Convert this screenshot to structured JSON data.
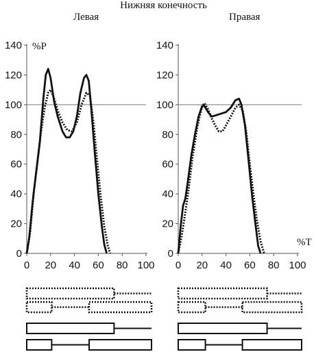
{
  "figure": {
    "title": "Нижняя конечность"
  },
  "chart_data": [
    {
      "type": "line",
      "title": "Левая",
      "ylabel": "%P",
      "xlabel": "",
      "xlim": [
        0,
        100
      ],
      "ylim": [
        0,
        140
      ],
      "xticks": [
        0,
        20,
        40,
        60,
        80,
        100
      ],
      "yticks": [
        0,
        20,
        40,
        60,
        80,
        100,
        120,
        140
      ],
      "reference_line": 100,
      "grid": false,
      "series": [
        {
          "style": "solid",
          "points": [
            [
              0,
              0
            ],
            [
              2,
              10
            ],
            [
              5,
              35
            ],
            [
              8,
              55
            ],
            [
              11,
              75
            ],
            [
              14,
              105
            ],
            [
              16,
              120
            ],
            [
              18,
              124
            ],
            [
              20,
              118
            ],
            [
              23,
              102
            ],
            [
              26,
              92
            ],
            [
              30,
              82
            ],
            [
              33,
              78
            ],
            [
              36,
              78
            ],
            [
              39,
              82
            ],
            [
              42,
              92
            ],
            [
              45,
              108
            ],
            [
              48,
              118
            ],
            [
              50,
              120
            ],
            [
              52,
              116
            ],
            [
              54,
              98
            ],
            [
              57,
              68
            ],
            [
              60,
              40
            ],
            [
              63,
              18
            ],
            [
              65,
              6
            ],
            [
              67,
              0
            ]
          ]
        },
        {
          "style": "dotted",
          "points": [
            [
              0,
              0
            ],
            [
              3,
              15
            ],
            [
              6,
              42
            ],
            [
              9,
              62
            ],
            [
              12,
              82
            ],
            [
              15,
              98
            ],
            [
              18,
              108
            ],
            [
              20,
              110
            ],
            [
              23,
              104
            ],
            [
              26,
              96
            ],
            [
              30,
              88
            ],
            [
              34,
              83
            ],
            [
              38,
              82
            ],
            [
              42,
              88
            ],
            [
              46,
              100
            ],
            [
              50,
              108
            ],
            [
              53,
              106
            ],
            [
              56,
              88
            ],
            [
              59,
              62
            ],
            [
              62,
              38
            ],
            [
              65,
              18
            ],
            [
              68,
              5
            ],
            [
              70,
              0
            ]
          ]
        }
      ]
    },
    {
      "type": "line",
      "title": "Правая",
      "ylabel": "",
      "xlabel": "%T",
      "xlim": [
        0,
        100
      ],
      "ylim": [
        0,
        140
      ],
      "xticks": [
        0,
        20,
        40,
        60,
        80,
        100
      ],
      "yticks": [
        0,
        20,
        40,
        60,
        80,
        100,
        120,
        140
      ],
      "reference_line": 100,
      "grid": false,
      "series": [
        {
          "style": "solid",
          "points": [
            [
              0,
              0
            ],
            [
              2,
              18
            ],
            [
              4,
              32
            ],
            [
              6,
              37
            ],
            [
              8,
              48
            ],
            [
              11,
              66
            ],
            [
              14,
              80
            ],
            [
              17,
              92
            ],
            [
              20,
              99
            ],
            [
              22,
              99
            ],
            [
              25,
              95
            ],
            [
              28,
              92
            ],
            [
              32,
              93
            ],
            [
              36,
              94
            ],
            [
              40,
              95
            ],
            [
              44,
              98
            ],
            [
              48,
              103
            ],
            [
              51,
              104
            ],
            [
              53,
              100
            ],
            [
              56,
              86
            ],
            [
              59,
              62
            ],
            [
              62,
              38
            ],
            [
              65,
              18
            ],
            [
              67,
              5
            ],
            [
              69,
              0
            ]
          ]
        },
        {
          "style": "dotted",
          "points": [
            [
              0,
              0
            ],
            [
              3,
              12
            ],
            [
              6,
              28
            ],
            [
              9,
              45
            ],
            [
              12,
              65
            ],
            [
              16,
              85
            ],
            [
              20,
              99
            ],
            [
              22,
              101
            ],
            [
              25,
              97
            ],
            [
              28,
              91
            ],
            [
              31,
              86
            ],
            [
              34,
              82
            ],
            [
              37,
              82
            ],
            [
              40,
              86
            ],
            [
              44,
              92
            ],
            [
              48,
              98
            ],
            [
              51,
              100
            ],
            [
              54,
              96
            ],
            [
              57,
              82
            ],
            [
              60,
              60
            ],
            [
              63,
              40
            ],
            [
              66,
              22
            ],
            [
              69,
              8
            ],
            [
              72,
              0
            ]
          ]
        }
      ]
    }
  ],
  "phase_bars": {
    "left": [
      {
        "style": "dotted",
        "stance_end": 70,
        "double_support": 0
      },
      {
        "style": "dotted",
        "stance_end": 20,
        "restart": 50
      },
      {
        "style": "solid",
        "stance_end": 70,
        "double_support": 0
      },
      {
        "style": "solid",
        "stance_end": 20,
        "restart": 50
      }
    ],
    "right": [
      {
        "style": "dotted",
        "stance_end": 72,
        "double_support": 0
      },
      {
        "style": "dotted",
        "stance_end": 22,
        "restart": 52
      },
      {
        "style": "solid",
        "stance_end": 72,
        "double_support": 0
      },
      {
        "style": "solid",
        "stance_end": 22,
        "restart": 52
      }
    ]
  }
}
